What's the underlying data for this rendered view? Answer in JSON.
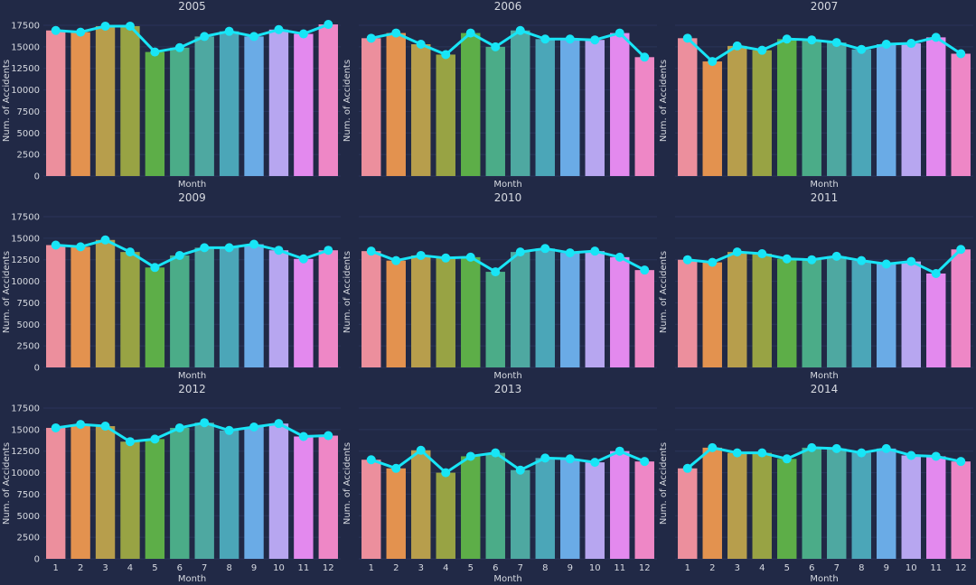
{
  "colors": {
    "background": "#212946",
    "grid": "#2A3459",
    "text": "#D6D9E0",
    "line": "#18E5F6",
    "bars": [
      "#EC8F9D",
      "#E3924F",
      "#B79E4C",
      "#98A344",
      "#5DAE48",
      "#4BAC88",
      "#4EA8A1",
      "#4BA6B8",
      "#6AABE6",
      "#B7A6F0",
      "#E389EE",
      "#EE87C6"
    ]
  },
  "chart_data": [
    {
      "type": "bar",
      "title": "2005",
      "xlabel": "Month",
      "ylabel": "Num. of Accidents",
      "categories": [
        "1",
        "2",
        "3",
        "4",
        "5",
        "6",
        "7",
        "8",
        "9",
        "10",
        "11",
        "12"
      ],
      "values": [
        16900,
        16700,
        17400,
        17400,
        14400,
        14900,
        16200,
        16800,
        16200,
        17000,
        16500,
        17600
      ],
      "ylim": [
        0,
        17500
      ],
      "yticks": [
        "0",
        "2500",
        "5000",
        "7500",
        "10000",
        "12500",
        "15000",
        "17500"
      ],
      "grid": true
    },
    {
      "type": "bar",
      "title": "2006",
      "xlabel": "Month",
      "ylabel": "Num. of Accidents",
      "categories": [
        "1",
        "2",
        "3",
        "4",
        "5",
        "6",
        "7",
        "8",
        "9",
        "10",
        "11",
        "12"
      ],
      "values": [
        16000,
        16600,
        15300,
        14100,
        16600,
        15000,
        16900,
        15900,
        15900,
        15800,
        16600,
        13800
      ],
      "ylim": [
        0,
        17500
      ],
      "yticks": [],
      "grid": true
    },
    {
      "type": "bar",
      "title": "2007",
      "xlabel": "Month",
      "ylabel": "Num. of Accidents",
      "categories": [
        "1",
        "2",
        "3",
        "4",
        "5",
        "6",
        "7",
        "8",
        "9",
        "10",
        "11",
        "12"
      ],
      "values": [
        16000,
        13300,
        15100,
        14600,
        15900,
        15800,
        15500,
        14700,
        15300,
        15400,
        16100,
        14200
      ],
      "ylim": [
        0,
        17500
      ],
      "yticks": [],
      "grid": true
    },
    {
      "type": "bar",
      "title": "2009",
      "xlabel": "Month",
      "ylabel": "Num. of Accidents",
      "categories": [
        "1",
        "2",
        "3",
        "4",
        "5",
        "6",
        "7",
        "8",
        "9",
        "10",
        "11",
        "12"
      ],
      "values": [
        14200,
        14000,
        14800,
        13400,
        11600,
        13000,
        13900,
        13900,
        14300,
        13600,
        12600,
        13600
      ],
      "ylim": [
        0,
        17500
      ],
      "yticks": [
        "0",
        "2500",
        "5000",
        "7500",
        "10000",
        "12500",
        "15000",
        "17500"
      ],
      "grid": true
    },
    {
      "type": "bar",
      "title": "2010",
      "xlabel": "Month",
      "ylabel": "Num. of Accidents",
      "categories": [
        "1",
        "2",
        "3",
        "4",
        "5",
        "6",
        "7",
        "8",
        "9",
        "10",
        "11",
        "12"
      ],
      "values": [
        13500,
        12400,
        13000,
        12700,
        12800,
        11100,
        13400,
        13800,
        13300,
        13500,
        12800,
        11300
      ],
      "ylim": [
        0,
        17500
      ],
      "yticks": [],
      "grid": true
    },
    {
      "type": "bar",
      "title": "2011",
      "xlabel": "Month",
      "ylabel": "Num. of Accidents",
      "categories": [
        "1",
        "2",
        "3",
        "4",
        "5",
        "6",
        "7",
        "8",
        "9",
        "10",
        "11",
        "12"
      ],
      "values": [
        12500,
        12200,
        13400,
        13200,
        12600,
        12500,
        12900,
        12400,
        12000,
        12300,
        10900,
        13700
      ],
      "ylim": [
        0,
        17500
      ],
      "yticks": [],
      "grid": true
    },
    {
      "type": "bar",
      "title": "2012",
      "xlabel": "Month",
      "ylabel": "Num. of Accidents",
      "categories": [
        "1",
        "2",
        "3",
        "4",
        "5",
        "6",
        "7",
        "8",
        "9",
        "10",
        "11",
        "12"
      ],
      "values": [
        15200,
        15600,
        15400,
        13600,
        13900,
        15200,
        15800,
        14900,
        15300,
        15700,
        14200,
        14300
      ],
      "ylim": [
        0,
        17500
      ],
      "yticks": [
        "0",
        "2500",
        "5000",
        "7500",
        "10000",
        "12500",
        "15000",
        "17500"
      ],
      "grid": true
    },
    {
      "type": "bar",
      "title": "2013",
      "xlabel": "Month",
      "ylabel": "Num. of Accidents",
      "categories": [
        "1",
        "2",
        "3",
        "4",
        "5",
        "6",
        "7",
        "8",
        "9",
        "10",
        "11",
        "12"
      ],
      "values": [
        11500,
        10500,
        12600,
        10000,
        11900,
        12300,
        10300,
        11700,
        11600,
        11200,
        12500,
        11300
      ],
      "ylim": [
        0,
        17500
      ],
      "yticks": [],
      "grid": true
    },
    {
      "type": "bar",
      "title": "2014",
      "xlabel": "Month",
      "ylabel": "Num. of Accidents",
      "categories": [
        "1",
        "2",
        "3",
        "4",
        "5",
        "6",
        "7",
        "8",
        "9",
        "10",
        "11",
        "12"
      ],
      "values": [
        10500,
        12900,
        12300,
        12300,
        11600,
        12900,
        12800,
        12300,
        12800,
        12000,
        11900,
        11300
      ],
      "ylim": [
        0,
        17500
      ],
      "yticks": [],
      "grid": true
    }
  ]
}
